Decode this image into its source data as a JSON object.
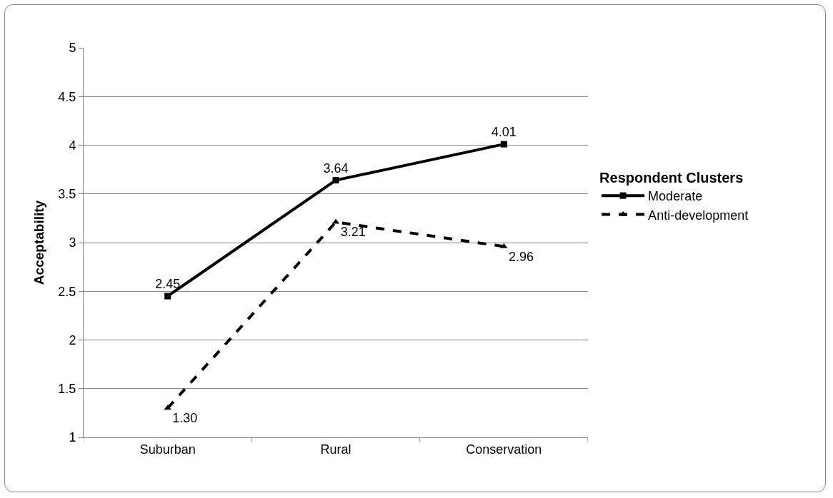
{
  "chart_data": {
    "type": "line",
    "ylabel": "Acceptability",
    "legend_title": "Respondent Clusters",
    "categories": [
      "Suburban",
      "Rural",
      "Conservation"
    ],
    "series": [
      {
        "name": "Moderate",
        "color": "#000000",
        "values": [
          2.45,
          3.64,
          4.01
        ],
        "value_labels": [
          "2.45",
          "3.64",
          "4.01"
        ],
        "marker": "square",
        "line_style": "solid"
      },
      {
        "name": "Anti-development",
        "color": "#000000",
        "values": [
          1.3,
          3.21,
          2.96
        ],
        "value_labels": [
          "1.30",
          "3.21",
          "2.96"
        ],
        "marker": "triangle",
        "line_style": "dashed"
      }
    ],
    "ylim": [
      1,
      5
    ],
    "yticks": [
      1,
      1.5,
      2,
      2.5,
      3,
      3.5,
      4,
      4.5,
      5
    ],
    "grid": "y",
    "legend": "right"
  }
}
